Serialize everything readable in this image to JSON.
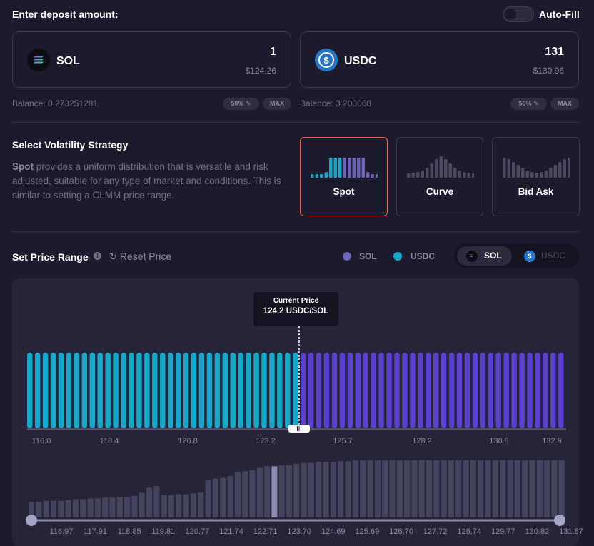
{
  "deposit": {
    "title": "Enter deposit amount:",
    "autofill_label": "Auto-Fill",
    "sol": {
      "name": "SOL",
      "amount": "1",
      "usd": "$124.26",
      "balance": "Balance: 0.273251281",
      "half": "50%",
      "max": "MAX"
    },
    "usdc": {
      "name": "USDC",
      "amount": "131",
      "usd": "$130.96",
      "balance": "Balance: 3.200068",
      "half": "50%",
      "max": "MAX"
    }
  },
  "strategy": {
    "title": "Select Volatility Strategy",
    "desc_strong": "Spot",
    "desc_rest": " provides a uniform distribution that is versatile and risk adjusted, suitable for any type of market and conditions. This is similar to setting a CLMM price range.",
    "options": [
      {
        "label": "Spot",
        "selected": true
      },
      {
        "label": "Curve",
        "selected": false
      },
      {
        "label": "Bid Ask",
        "selected": false
      }
    ]
  },
  "price_range": {
    "title": "Set Price Range",
    "reset_label": "Reset Price",
    "legend": [
      {
        "label": "SOL",
        "color": "#6b63b5"
      },
      {
        "label": "USDC",
        "color": "#14a8c9"
      }
    ],
    "toggle": [
      {
        "label": "SOL",
        "active": true
      },
      {
        "label": "USDC",
        "active": false
      }
    ],
    "current_price_label": "Current Price",
    "current_price_value": "124.2 USDC/SOL"
  },
  "chart_data": [
    {
      "type": "bar",
      "title": "",
      "xlabel": "",
      "ylabel": "",
      "x_ticks": [
        "116.0",
        "118.4",
        "120.8",
        "123.2",
        "125.7",
        "128.2",
        "130.8",
        "132.9"
      ],
      "current_price": 124.2,
      "series": [
        {
          "name": "USDC",
          "bins": 35,
          "color": "#14a8c9",
          "relative_height": 1.0
        },
        {
          "name": "SOL",
          "bins": 34,
          "color": "#5b3fcf",
          "relative_height": 1.0
        }
      ]
    },
    {
      "type": "bar",
      "title": "",
      "xlabel": "",
      "ylabel": "",
      "x_ticks": [
        "116.97",
        "117.91",
        "118.85",
        "119.81",
        "120.77",
        "121.74",
        "122.71",
        "123.70",
        "124.69",
        "125.69",
        "126.70",
        "127.72",
        "128.74",
        "129.77",
        "130.82",
        "131.87"
      ],
      "values": [
        0.19,
        0.19,
        0.2,
        0.2,
        0.2,
        0.21,
        0.22,
        0.22,
        0.23,
        0.23,
        0.24,
        0.24,
        0.25,
        0.25,
        0.26,
        0.3,
        0.36,
        0.38,
        0.27,
        0.27,
        0.28,
        0.28,
        0.29,
        0.3,
        0.45,
        0.47,
        0.48,
        0.5,
        0.55,
        0.56,
        0.57,
        0.6,
        0.62,
        0.62,
        0.63,
        0.63,
        0.65,
        0.66,
        0.66,
        0.67,
        0.67,
        0.67,
        0.68,
        0.68,
        0.69,
        0.69,
        0.69,
        0.69,
        0.7,
        0.7,
        0.7,
        0.7,
        0.7,
        0.7,
        0.71,
        0.71,
        0.71,
        0.71,
        0.7,
        0.7,
        0.7,
        0.7,
        0.7,
        0.7,
        0.7,
        0.7,
        0.7,
        0.7,
        0.7,
        0.7,
        0.7,
        0.7,
        0.7
      ],
      "highlight_index": 33
    }
  ]
}
